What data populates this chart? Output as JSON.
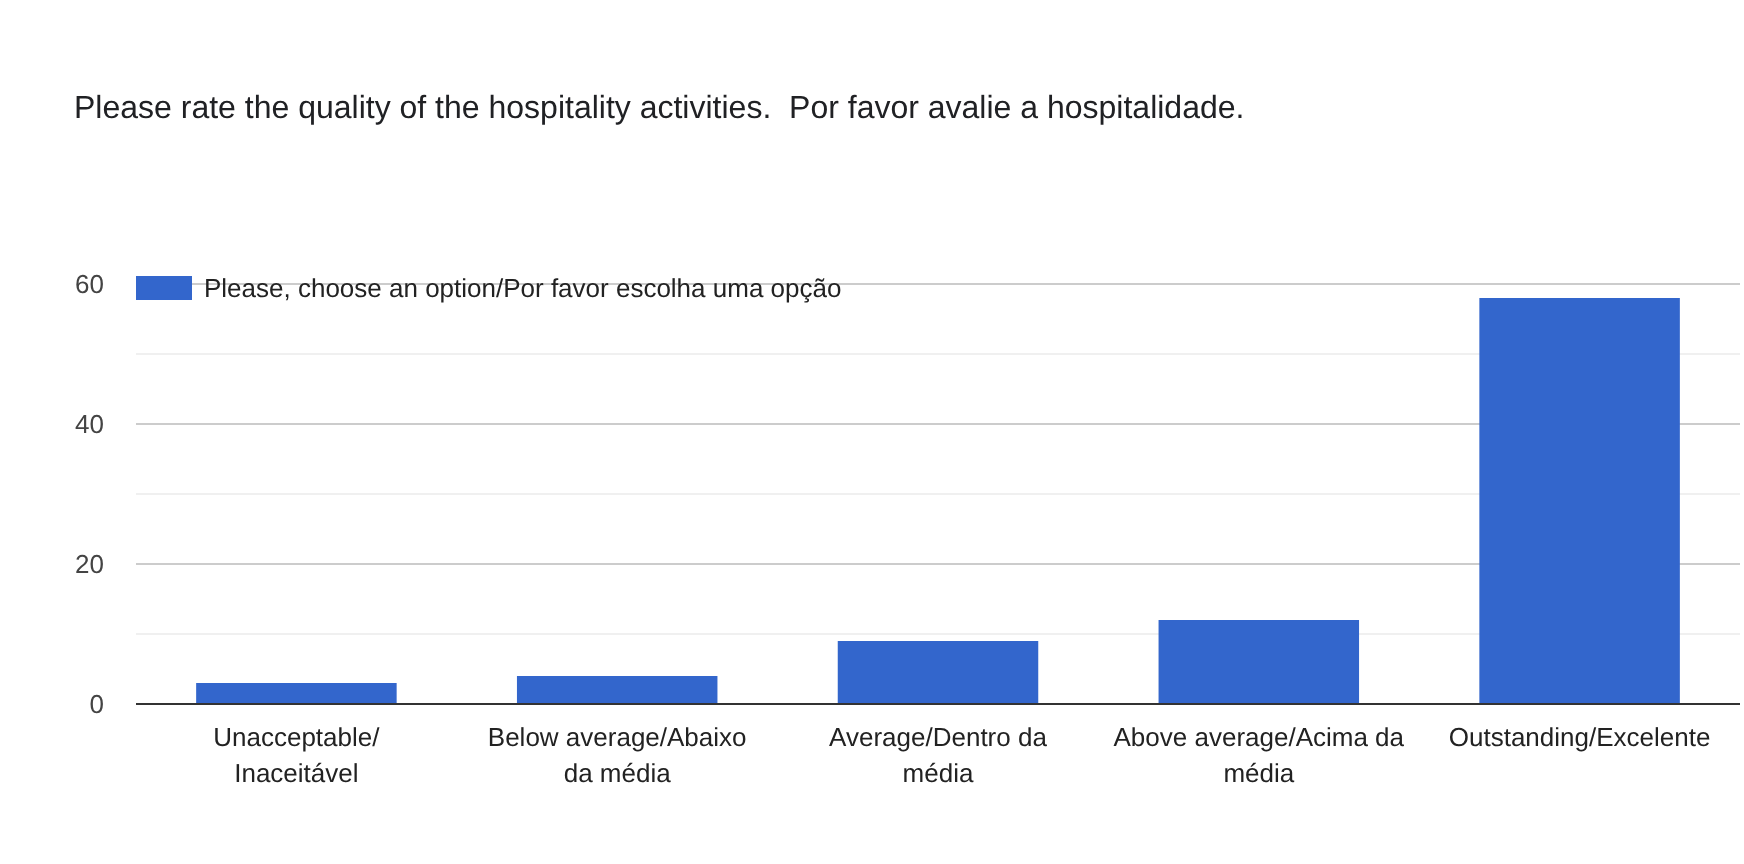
{
  "chart_data": {
    "type": "bar",
    "title": "Please rate the quality of the hospitality activities.  Por favor avalie a hospitalidade.",
    "categories": [
      "Unacceptable/ Inaceitável",
      "Below average/Abaixo da média",
      "Average/Dentro da média",
      "Above average/Acima da média",
      "Outstanding/Excelente"
    ],
    "series": [
      {
        "name": "Please, choose an option/Por favor escolha uma opção",
        "color": "#3366cc",
        "values": [
          3,
          4,
          9,
          12,
          58
        ]
      }
    ],
    "ylim": [
      0,
      60
    ],
    "yticks": [
      0,
      {
        "value": 10,
        "label": null
      },
      20,
      {
        "value": 30,
        "label": null
      },
      40,
      {
        "value": 50,
        "label": null
      },
      60
    ],
    "grid": "y",
    "legend": "top left"
  }
}
